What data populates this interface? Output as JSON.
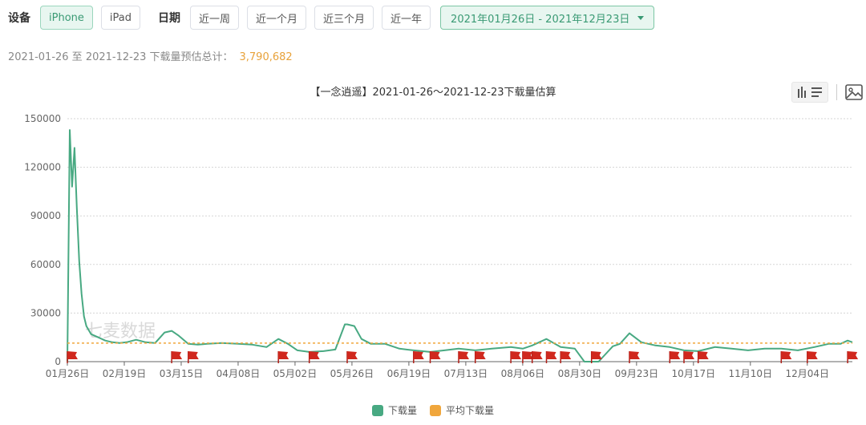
{
  "filters": {
    "device_label": "设备",
    "devices": [
      "iPhone",
      "iPad"
    ],
    "active_device": "iPhone",
    "date_label": "日期",
    "ranges": [
      "近一周",
      "近一个月",
      "近三个月",
      "近一年"
    ],
    "date_range": "2021年01月26日 - 2021年12月23日"
  },
  "summary": {
    "text": "2021-01-26 至 2021-12-23 下载量预估总计：",
    "total": "3,790,682"
  },
  "watermark": "七麦数据",
  "icons": [
    "bar-chart-icon",
    "list-icon",
    "image-icon"
  ],
  "colors": {
    "downloads": "#48a982",
    "average": "#f0a63c",
    "flag": "#d0281e",
    "accent": "#3a9a74"
  },
  "chart_data": {
    "type": "line",
    "title": "【一念逍遥】2021-01-26～2021-12-23下载量估算",
    "xlabel": "",
    "ylabel": "",
    "ylim": [
      0,
      150000
    ],
    "yticks": [
      0,
      30000,
      60000,
      90000,
      120000,
      150000
    ],
    "xtick_labels": [
      "01月26日",
      "02月19日",
      "03月15日",
      "04月08日",
      "05月02日",
      "05月26日",
      "06月19日",
      "07月13日",
      "08月06日",
      "08月30日",
      "09月23日",
      "10月17日",
      "11月10日",
      "12月04日"
    ],
    "legend_position": "bottom",
    "grid": true,
    "series": [
      {
        "name": "下载量",
        "x": [
          "2021-01-26",
          "2021-01-27",
          "2021-01-28",
          "2021-01-29",
          "2021-01-30",
          "2021-01-31",
          "2021-02-01",
          "2021-02-02",
          "2021-02-03",
          "2021-02-05",
          "2021-02-08",
          "2021-02-11",
          "2021-02-14",
          "2021-02-17",
          "2021-02-20",
          "2021-02-24",
          "2021-02-28",
          "2021-03-04",
          "2021-03-08",
          "2021-03-11",
          "2021-03-14",
          "2021-03-18",
          "2021-03-22",
          "2021-03-26",
          "2021-04-01",
          "2021-04-08",
          "2021-04-14",
          "2021-04-20",
          "2021-04-25",
          "2021-04-29",
          "2021-05-03",
          "2021-05-08",
          "2021-05-14",
          "2021-05-19",
          "2021-05-23",
          "2021-05-24",
          "2021-05-27",
          "2021-05-30",
          "2021-06-03",
          "2021-06-09",
          "2021-06-15",
          "2021-06-21",
          "2021-06-28",
          "2021-07-04",
          "2021-07-10",
          "2021-07-17",
          "2021-07-24",
          "2021-08-01",
          "2021-08-06",
          "2021-08-10",
          "2021-08-16",
          "2021-08-22",
          "2021-08-28",
          "2021-09-01",
          "2021-09-04",
          "2021-09-07",
          "2021-09-13",
          "2021-09-16",
          "2021-09-20",
          "2021-09-25",
          "2021-10-01",
          "2021-10-07",
          "2021-10-13",
          "2021-10-19",
          "2021-10-26",
          "2021-11-02",
          "2021-11-09",
          "2021-11-16",
          "2021-11-23",
          "2021-11-30",
          "2021-12-07",
          "2021-12-13",
          "2021-12-18",
          "2021-12-21",
          "2021-12-23"
        ],
        "values": [
          0,
          143000,
          108000,
          132000,
          95000,
          62000,
          42000,
          28000,
          22000,
          17000,
          15000,
          13000,
          12000,
          11500,
          12000,
          13500,
          12000,
          11500,
          18000,
          19000,
          16000,
          11000,
          10500,
          11000,
          11500,
          11000,
          10500,
          9000,
          14000,
          11000,
          7000,
          6000,
          6500,
          7500,
          23000,
          23000,
          22000,
          14000,
          11000,
          11000,
          8000,
          7000,
          6000,
          7000,
          8000,
          7000,
          8000,
          9000,
          8000,
          10000,
          14000,
          9000,
          8000,
          0,
          0,
          0,
          9500,
          11000,
          17500,
          12000,
          10000,
          9000,
          7000,
          6500,
          9000,
          8000,
          7000,
          8000,
          8000,
          7000,
          9000,
          11000,
          11000,
          13000,
          12000
        ]
      },
      {
        "name": "平均下载量",
        "x": [
          "2021-01-26",
          "2021-12-23"
        ],
        "values": [
          11457,
          11457
        ]
      }
    ],
    "flag_markers": [
      "2021-01-26",
      "2021-03-11",
      "2021-03-18",
      "2021-04-25",
      "2021-05-08",
      "2021-05-24",
      "2021-06-21",
      "2021-06-28",
      "2021-07-10",
      "2021-07-17",
      "2021-08-01",
      "2021-08-06",
      "2021-08-10",
      "2021-08-16",
      "2021-08-22",
      "2021-09-04",
      "2021-09-20",
      "2021-10-07",
      "2021-10-13",
      "2021-10-19",
      "2021-11-23",
      "2021-12-04",
      "2021-12-21"
    ]
  }
}
